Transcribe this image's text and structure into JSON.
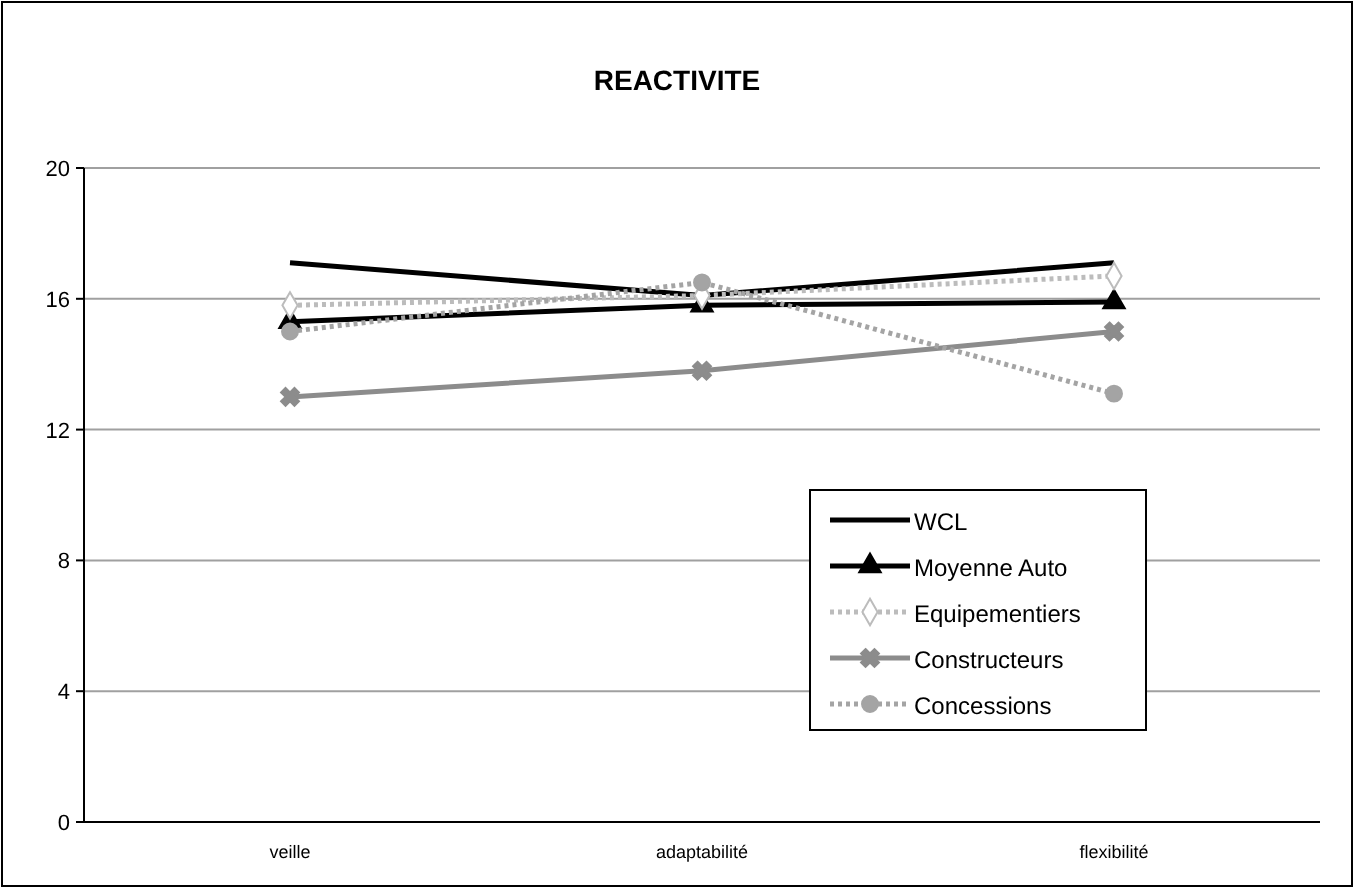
{
  "chart_data": {
    "type": "line",
    "title": "REACTIVITE",
    "categories": [
      "veille",
      "adaptabilité",
      "flexibilité"
    ],
    "series": [
      {
        "name": "WCL",
        "color": "#000000",
        "values": [
          17.1,
          16.1,
          17.1
        ],
        "marker": "none",
        "line_style": "solid"
      },
      {
        "name": "Moyenne Auto",
        "color": "#000000",
        "values": [
          15.3,
          15.8,
          15.9
        ],
        "marker": "triangle",
        "line_style": "solid"
      },
      {
        "name": "Equipementiers",
        "color": "#bcbcbc",
        "values": [
          15.8,
          16.1,
          16.7
        ],
        "marker": "diamond",
        "line_style": "dotted"
      },
      {
        "name": "Constructeurs",
        "color": "#8c8c8c",
        "values": [
          13,
          13.8,
          15
        ],
        "marker": "cross",
        "line_style": "solid"
      },
      {
        "name": "Concessions",
        "color": "#a4a4a4",
        "values": [
          15.0,
          16.5,
          13.1
        ],
        "marker": "circle",
        "line_style": "dotted"
      }
    ],
    "ylim": [
      0,
      20
    ],
    "yticks": [
      0,
      4,
      8,
      12,
      16,
      20
    ],
    "grid": "y",
    "legend": "bottom right"
  }
}
